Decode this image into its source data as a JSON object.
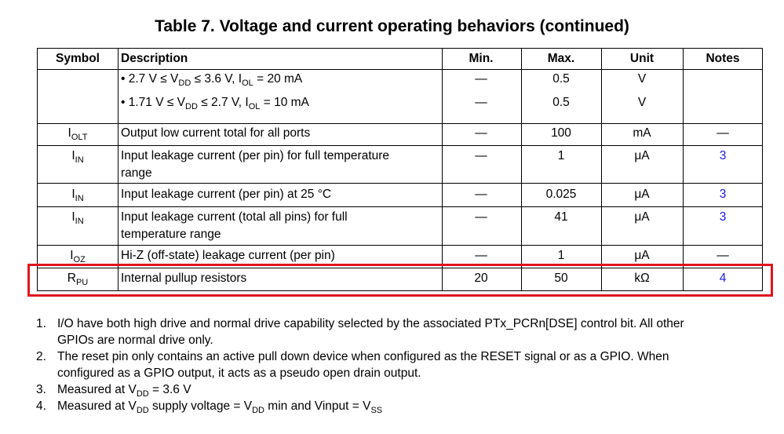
{
  "title": "Table 7.   Voltage and current operating behaviors (continued)",
  "table": {
    "header": [
      "Symbol",
      "Description",
      "Min.",
      "Max.",
      "Unit",
      "Notes"
    ],
    "rows": [
      {
        "description": [
          [
            {
              "text": "•  2.7 V ≤ V"
            },
            {
              "sub": "DD"
            },
            {
              "text": " ≤ 3.6 V, I"
            },
            {
              "sub": "OL"
            },
            {
              "text": " = 20 mA"
            }
          ]
        ],
        "min": "—",
        "max": "0.5",
        "unit": "V"
      },
      {
        "description": [
          [
            {
              "text": "•  1.71 V ≤ V"
            },
            {
              "sub": "DD"
            },
            {
              "text": " ≤ 2.7 V, I"
            },
            {
              "sub": "OL"
            },
            {
              "text": " = 10 mA"
            }
          ]
        ],
        "min": "—",
        "max": "0.5",
        "unit": "V"
      },
      {
        "symbol": [
          {
            "text": "I"
          },
          {
            "sub": "OLT"
          }
        ],
        "description": [
          [
            {
              "text": "Output low current total for all ports"
            }
          ]
        ],
        "min": "—",
        "max": "100",
        "unit": "mA",
        "notes": "—"
      },
      {
        "symbol": [
          {
            "text": "I"
          },
          {
            "sub": "IN"
          }
        ],
        "description": [
          [
            {
              "text": "Input leakage current (per pin) for full temperature"
            }
          ],
          [
            {
              "text": "range"
            }
          ]
        ],
        "min": "—",
        "max": "1",
        "unit": "μA",
        "notes": "3"
      },
      {
        "symbol": [
          {
            "text": "I"
          },
          {
            "sub": "IN"
          }
        ],
        "description": [
          [
            {
              "text": "Input leakage current (per pin) at 25 °C"
            }
          ]
        ],
        "min": "—",
        "max": "0.025",
        "unit": "μA",
        "notes": "3"
      },
      {
        "symbol": [
          {
            "text": "I"
          },
          {
            "sub": "IN"
          }
        ],
        "description": [
          [
            {
              "text": "Input leakage current (total all pins) for full"
            }
          ],
          [
            {
              "text": "temperature range"
            }
          ]
        ],
        "min": "—",
        "max": "41",
        "unit": "μA",
        "notes": "3"
      },
      {
        "symbol": [
          {
            "text": "I"
          },
          {
            "sub": "OZ"
          }
        ],
        "description": [
          [
            {
              "text": "Hi-Z (off-state) leakage current (per pin)"
            }
          ]
        ],
        "min": "—",
        "max": "1",
        "unit": "μA",
        "notes": "—"
      },
      {
        "symbol": [
          {
            "text": "R"
          },
          {
            "sub": "PU"
          }
        ],
        "description": [
          [
            {
              "text": "Internal pullup resistors"
            }
          ]
        ],
        "min": "20",
        "max": "50",
        "unit": "kΩ",
        "notes": "4"
      }
    ]
  },
  "footnotes": [
    {
      "number": "1.",
      "lines": [
        [
          {
            "text": "I/O have both high drive and normal drive capability selected by the associated PTx_PCRn[DSE] control bit. All other"
          }
        ],
        [
          {
            "text": "GPIOs are normal drive only."
          }
        ]
      ]
    },
    {
      "number": "2.",
      "lines": [
        [
          {
            "text": "The reset pin only contains an active pull down device when configured as the RESET signal or as a GPIO. When"
          }
        ],
        [
          {
            "text": "configured as a GPIO output, it acts as a pseudo open drain output."
          }
        ]
      ]
    },
    {
      "number": "3.",
      "lines": [
        [
          {
            "text": "Measured at V"
          },
          {
            "sub": "DD"
          },
          {
            "text": " = 3.6 V"
          }
        ]
      ]
    },
    {
      "number": "4.",
      "lines": [
        [
          {
            "text": "Measured at V"
          },
          {
            "sub": "DD"
          },
          {
            "text": " supply voltage = V"
          },
          {
            "sub": "DD"
          },
          {
            "text": " min and Vinput = V"
          },
          {
            "sub": "SS"
          }
        ]
      ]
    }
  ]
}
